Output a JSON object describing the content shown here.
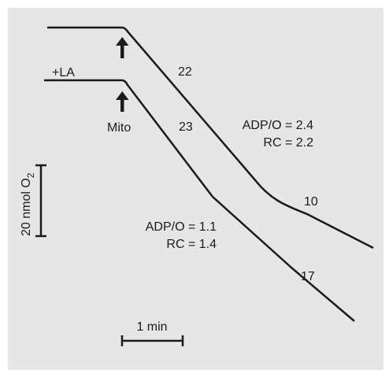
{
  "chart_data": {
    "type": "line",
    "title": "",
    "xlabel": "",
    "ylabel": "",
    "grid": false,
    "traces": [
      {
        "pre_label": "",
        "arrow_label": "",
        "segment_rates": [
          "22",
          "10"
        ],
        "annotation": [
          "ADP/O = 2.4",
          "RC = 2.2"
        ]
      },
      {
        "pre_label": "+LA",
        "arrow_label": "Mito",
        "segment_rates": [
          "23",
          "17"
        ],
        "annotation": [
          "ADP/O = 1.1",
          "RC = 1.4"
        ]
      }
    ],
    "scale_bars": {
      "y": {
        "label": "20 nmol O",
        "subscript": "2"
      },
      "x": {
        "label": "1 min"
      }
    }
  },
  "colors": {
    "background": "#e6e6e6",
    "trace": "#1a1a1a"
  }
}
